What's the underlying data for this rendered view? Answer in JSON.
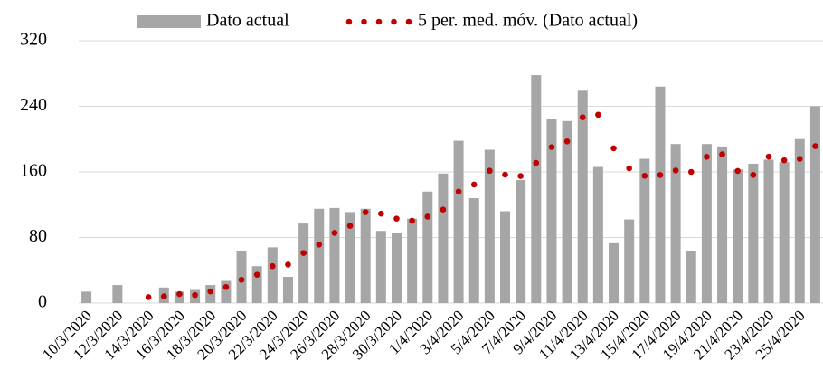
{
  "chart_data": {
    "type": "bar",
    "categories": [
      "10/3/2020",
      null,
      "12/3/2020",
      null,
      "14/3/2020",
      null,
      "16/3/2020",
      null,
      "18/3/2020",
      null,
      "20/3/2020",
      null,
      "22/3/2020",
      null,
      "24/3/2020",
      null,
      "26/3/2020",
      null,
      "28/3/2020",
      null,
      "30/3/2020",
      null,
      "1/4/2020",
      null,
      "3/4/2020",
      null,
      "5/4/2020",
      null,
      "7/4/2020",
      null,
      "9/4/2020",
      null,
      "11/4/2020",
      null,
      "13/4/2020",
      null,
      "15/4/2020",
      null,
      "17/4/2020",
      null,
      "19/4/2020",
      null,
      "21/4/2020",
      null,
      "23/4/2020",
      null,
      "25/4/2020",
      null
    ],
    "series": [
      {
        "name": "Dato actual",
        "type": "bar",
        "color": "#a6a6a6",
        "values": [
          14,
          0,
          22,
          0,
          0,
          19,
          14,
          16,
          22,
          27,
          63,
          45,
          68,
          32,
          97,
          115,
          116,
          111,
          115,
          88,
          85,
          103,
          136,
          158,
          198,
          128,
          187,
          112,
          150,
          278,
          224,
          222,
          259,
          166,
          73,
          102,
          176,
          264,
          194,
          64,
          194,
          191,
          163,
          170,
          175,
          172,
          200,
          240
        ]
      },
      {
        "name": "5 per. med. móv. (Dato actual)",
        "type": "dots",
        "color": "#c00000",
        "values": [
          null,
          null,
          null,
          null,
          7.2,
          8.2,
          11,
          9.8,
          14.2,
          19.6,
          28.4,
          34.6,
          45,
          47,
          61,
          71.4,
          85.6,
          94.2,
          110.8,
          109,
          103,
          100.4,
          105.4,
          114,
          136,
          144.6,
          161.4,
          156.6,
          155,
          171,
          190.2,
          197.2,
          226.6,
          229.8,
          188.8,
          164.4,
          155.2,
          156.2,
          161.8,
          160,
          178.4,
          181.4,
          161.2,
          156.4,
          178.6,
          174.2,
          176,
          191.4
        ]
      }
    ],
    "ylim": [
      0,
      320
    ],
    "yticks": [
      0,
      80,
      160,
      240,
      320
    ],
    "grid": true,
    "legend": "top"
  }
}
